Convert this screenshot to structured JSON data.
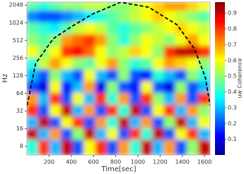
{
  "chart_data": {
    "type": "heatmap",
    "xlabel": "Time[sec]",
    "ylabel": "Hz",
    "colorbar_label": "uw Coherence",
    "colormap": "jet",
    "yscale": "log",
    "xlim": [
      0,
      1650
    ],
    "xticks": [
      200,
      400,
      600,
      800,
      1000,
      1200,
      1400,
      1600
    ],
    "ylim": [
      5.7,
      2300
    ],
    "yticks": [
      8,
      16,
      32,
      64,
      128,
      256,
      512,
      1024,
      2048
    ],
    "clim": [
      0,
      0.97
    ],
    "cticks": [
      0.1,
      0.2,
      0.3,
      0.4,
      0.5,
      0.6,
      0.7,
      0.8,
      0.9
    ],
    "x": [
      52,
      155,
      258,
      361,
      464,
      567,
      670,
      773,
      876,
      979,
      1082,
      1185,
      1288,
      1391,
      1494,
      1597
    ],
    "y": [
      2048,
      1290,
      812,
      512,
      322,
      203,
      128,
      81,
      51,
      32,
      20,
      13,
      8
    ],
    "z": [
      [
        0.45,
        0.4,
        0.45,
        0.5,
        0.5,
        0.55,
        0.55,
        0.5,
        0.5,
        0.55,
        0.6,
        0.65,
        0.7,
        0.7,
        0.65,
        0.6
      ],
      [
        0.25,
        0.2,
        0.2,
        0.25,
        0.3,
        0.35,
        0.4,
        0.45,
        0.5,
        0.55,
        0.6,
        0.65,
        0.6,
        0.55,
        0.5,
        0.45
      ],
      [
        0.45,
        0.4,
        0.35,
        0.45,
        0.55,
        0.6,
        0.55,
        0.45,
        0.4,
        0.45,
        0.5,
        0.55,
        0.6,
        0.65,
        0.6,
        0.55
      ],
      [
        0.5,
        0.45,
        0.5,
        0.7,
        0.75,
        0.8,
        0.7,
        0.5,
        0.4,
        0.5,
        0.6,
        0.55,
        0.5,
        0.6,
        0.7,
        0.6
      ],
      [
        0.6,
        0.5,
        0.6,
        0.8,
        0.85,
        0.75,
        0.6,
        0.5,
        0.55,
        0.65,
        0.6,
        0.5,
        0.8,
        0.9,
        0.9,
        0.8
      ],
      [
        0.4,
        0.55,
        0.7,
        0.6,
        0.5,
        0.45,
        0.6,
        0.7,
        0.5,
        0.4,
        0.45,
        0.6,
        0.7,
        0.65,
        0.6,
        0.5
      ],
      [
        0.3,
        0.2,
        0.5,
        0.3,
        0.2,
        0.6,
        0.3,
        0.2,
        0.5,
        0.2,
        0.15,
        0.4,
        0.3,
        0.2,
        0.5,
        0.4
      ],
      [
        0.2,
        0.1,
        0.6,
        0.15,
        0.3,
        0.7,
        0.1,
        0.5,
        0.2,
        0.15,
        0.6,
        0.2,
        0.1,
        0.5,
        0.2,
        0.3
      ],
      [
        0.7,
        0.3,
        0.8,
        0.2,
        0.6,
        0.3,
        0.8,
        0.4,
        0.7,
        0.2,
        0.8,
        0.5,
        0.3,
        0.7,
        0.2,
        0.8
      ],
      [
        0.8,
        0.2,
        0.6,
        0.9,
        0.3,
        0.7,
        0.2,
        0.8,
        0.4,
        0.9,
        0.2,
        0.6,
        0.8,
        0.3,
        0.7,
        0.5
      ],
      [
        0.3,
        0.9,
        0.2,
        0.6,
        0.8,
        0.2,
        0.7,
        0.4,
        0.9,
        0.3,
        0.7,
        0.2,
        0.5,
        0.9,
        0.3,
        0.6
      ],
      [
        0.9,
        0.3,
        0.7,
        0.2,
        0.5,
        0.9,
        0.3,
        0.6,
        0.2,
        0.8,
        0.4,
        0.9,
        0.2,
        0.6,
        0.8,
        0.3
      ],
      [
        0.4,
        0.8,
        0.3,
        0.9,
        0.2,
        0.6,
        0.8,
        0.2,
        0.7,
        0.4,
        0.9,
        0.3,
        0.7,
        0.2,
        0.5,
        0.9
      ]
    ],
    "coi": {
      "x": [
        3,
        79,
        238,
        397,
        589,
        843,
        1098,
        1353,
        1512,
        1608,
        1650
      ],
      "y": [
        40,
        207,
        549,
        868,
        1430,
        2290,
        1880,
        943,
        362,
        119,
        40
      ]
    }
  }
}
